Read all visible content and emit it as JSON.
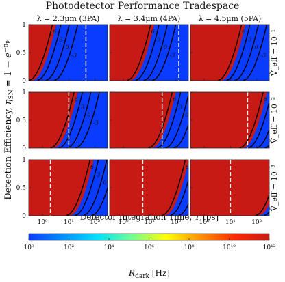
{
  "chart_data": {
    "type": "heatmap",
    "title": "Photodetector Performance Tradespace",
    "xlabel": "Detector Integration Time, T [ps]",
    "ylabel": "Detection Efficiency, η_SN = 1 − e^(−n_p)",
    "x_scale": "log",
    "xlim": [
      0.3,
      300
    ],
    "x_ticks": [
      1,
      10,
      100
    ],
    "x_tick_labels": [
      "10⁰",
      "10¹",
      "10²"
    ],
    "ylim": [
      0,
      1
    ],
    "y_ticks": [
      0,
      0.5,
      1
    ],
    "y_tick_labels": [
      "0",
      "0.5",
      "1"
    ],
    "columns": [
      {
        "label": "λ = 2.3μm (3PA)",
        "wavelength": "2.3μm",
        "process": "3PA"
      },
      {
        "label": "λ = 3.4μm (4PA)",
        "wavelength": "3.4μm",
        "process": "4PA"
      },
      {
        "label": "λ = 4.5μm (5PA)",
        "wavelength": "4.5μm",
        "process": "5PA"
      }
    ],
    "rows": [
      {
        "label": "Ṽ_eff = 10⁻¹",
        "v_eff": 0.1
      },
      {
        "label": "Ṽ_eff = 10⁻²",
        "v_eff": 0.01
      },
      {
        "label": "Ṽ_eff = 10⁻³",
        "v_eff": 0.001
      }
    ],
    "contour_labels": [
      "6",
      "3",
      "0",
      "-3"
    ],
    "contour_levels": [
      6,
      3,
      0,
      -3
    ],
    "threshold_lines_T": [
      [
        45,
        130,
        300
      ],
      [
        10,
        30,
        45
      ],
      [
        2,
        5.5,
        10
      ]
    ],
    "colorbar": {
      "label": "R_dark [Hz]",
      "range": [
        1,
        1000000000000.0
      ],
      "scale": "log",
      "ticks": [
        "10⁰",
        "10²",
        "10⁴",
        "10⁶",
        "10⁸",
        "10¹⁰",
        "10¹²"
      ],
      "colors": [
        "#0a3cff",
        "#0090ff",
        "#00e0ff",
        "#70ff90",
        "#ffff00",
        "#ff9000",
        "#ff2a00",
        "#c81a14"
      ]
    }
  }
}
